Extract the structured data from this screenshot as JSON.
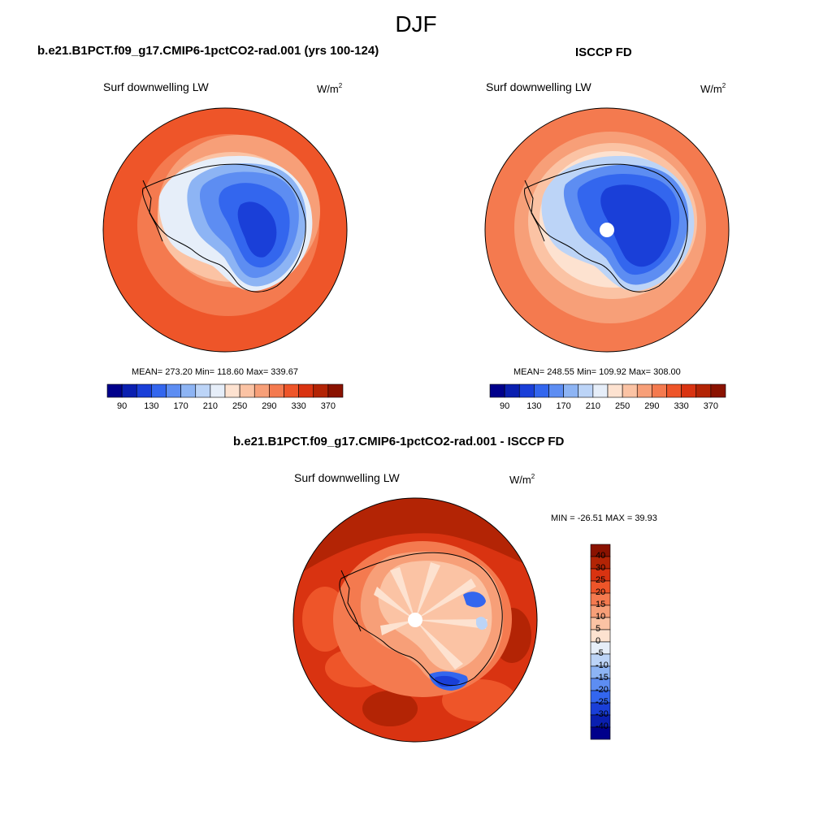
{
  "figure": {
    "title": "DJF"
  },
  "panel_a": {
    "case_title": "b.e21.B1PCT.f09_g17.CMIP6-1pctCO2-rad.001 (yrs 100-124)",
    "variable": "Surf downwelling LW",
    "units": "W/m",
    "units_sup": "2",
    "stats_text": "MEAN= 273.20  Min= 118.60  Max= 339.67"
  },
  "panel_b": {
    "case_title": "ISCCP FD",
    "variable": "Surf downwelling LW",
    "units": "W/m",
    "units_sup": "2",
    "stats_text": "MEAN= 248.55  Min= 109.92  Max= 308.00"
  },
  "panel_c": {
    "case_title": "b.e21.B1PCT.f09_g17.CMIP6-1pctCO2-rad.001 - ISCCP FD",
    "variable": "Surf downwelling LW",
    "units": "W/m",
    "units_sup": "2",
    "stats_text": "MIN = -26.51 MAX =  39.93"
  },
  "colorbar_abs": {
    "tick_labels": [
      "90",
      "130",
      "170",
      "210",
      "250",
      "290",
      "330",
      "370"
    ],
    "colors": [
      "#00008b",
      "#0a1fb0",
      "#1a3fd8",
      "#3366ee",
      "#5d8df2",
      "#8db4f4",
      "#bcd4f7",
      "#e6eef9",
      "#fde2d0",
      "#fbc3a4",
      "#f79f78",
      "#f47a4f",
      "#ee5529",
      "#d93311",
      "#b32405",
      "#8a1200"
    ]
  },
  "colorbar_diff": {
    "tick_labels": [
      "40",
      "30",
      "25",
      "20",
      "15",
      "10",
      "5",
      "0",
      "-5",
      "-10",
      "-15",
      "-20",
      "-25",
      "-30",
      "-40"
    ],
    "colors": [
      "#8a1200",
      "#b32405",
      "#d93311",
      "#ee5529",
      "#f47a4f",
      "#f79f78",
      "#fbc3a4",
      "#fde2d0",
      "#e6eef9",
      "#bcd4f7",
      "#8db4f4",
      "#5d8df2",
      "#3366ee",
      "#1a3fd8",
      "#0a1fb0",
      "#00008b"
    ]
  }
}
